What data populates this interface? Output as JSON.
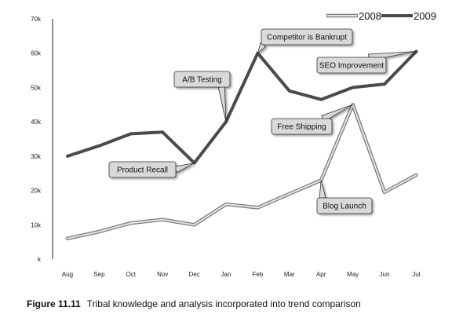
{
  "chart_data": {
    "type": "line",
    "categories": [
      "Aug",
      "Sep",
      "Oct",
      "Nov",
      "Dec",
      "Jan",
      "Feb",
      "Mar",
      "Apr",
      "May",
      "Jun",
      "Jul"
    ],
    "y_ticks": [
      "k",
      "10k",
      "20k",
      "30k",
      "40k",
      "50k",
      "60k",
      "70k"
    ],
    "ylim": [
      0,
      70000
    ],
    "grid": false,
    "legend_position": "top-right",
    "series": [
      {
        "name": "2008",
        "color": "#b5b5b5",
        "values": [
          6000,
          8000,
          10500,
          11500,
          10000,
          16000,
          15000,
          19000,
          23000,
          45000,
          19500,
          24500
        ]
      },
      {
        "name": "2009",
        "color": "#4a4a4a",
        "values": [
          30000,
          33000,
          36500,
          37000,
          28000,
          40000,
          60000,
          49000,
          46500,
          50000,
          51000,
          60500
        ]
      }
    ],
    "annotations": [
      {
        "text": "Product Recall",
        "series": "2009",
        "category": "Dec"
      },
      {
        "text": "A/B Testing",
        "series": "2009",
        "category": "Jan"
      },
      {
        "text": "Competitor is Bankrupt",
        "series": "2009",
        "category": "Feb"
      },
      {
        "text": "SEO Improvement",
        "series": "2009",
        "category": "Jul"
      },
      {
        "text": "Free Shipping",
        "series": "2008",
        "category": "May"
      },
      {
        "text": "Blog Launch",
        "series": "2008",
        "category": "Apr"
      }
    ]
  },
  "caption": {
    "label": "Figure 11.11",
    "text": "Tribal knowledge and analysis incorporated into trend comparison"
  }
}
